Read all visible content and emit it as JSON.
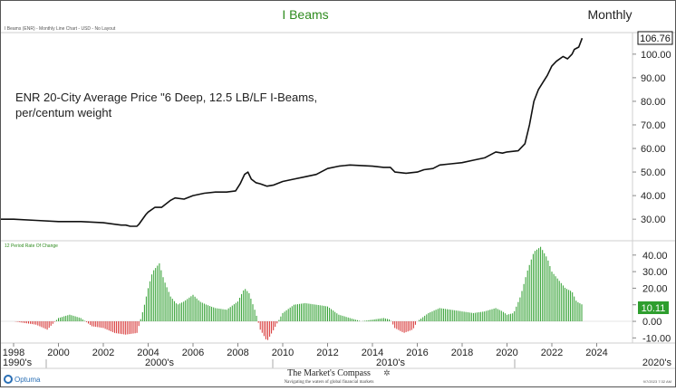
{
  "header": {
    "title": "I Beams",
    "period": "Monthly",
    "subtitle": "I Beams (ENR) - Monthly Line Chart - USD - No Layout",
    "title_color": "#2e8b1e"
  },
  "annotation": {
    "line1": "ENR 20-City Average Price \"6 Deep, 12.5 LB/LF I-Beams,",
    "line2": "per/centum weight"
  },
  "footer": {
    "vendor": "Optuma",
    "brand": "The Market's Compass",
    "tagline": "Navigating the waters of global financial markets",
    "timestamp": "9/7/2023 7:32 AM"
  },
  "chart_data": [
    {
      "type": "line",
      "title": "ENR 20-City Average Price \"6 Deep, 12.5 LB/LF I-Beams, per/centum weight",
      "ylim": [
        22,
        108
      ],
      "yticks": [
        "30.00",
        "40.00",
        "50.00",
        "60.00",
        "70.00",
        "80.00",
        "90.00",
        "100.00"
      ],
      "last_value": "106.76",
      "x": [
        1998.0,
        1999.0,
        2000.0,
        2001.0,
        2002.0,
        2002.8,
        2003.0,
        2003.2,
        2003.5,
        2003.6,
        2003.9,
        2004.0,
        2004.3,
        2004.6,
        2005.0,
        2005.2,
        2005.6,
        2006.0,
        2006.5,
        2007.0,
        2007.5,
        2007.9,
        2008.1,
        2008.3,
        2008.45,
        2008.6,
        2008.8,
        2009.0,
        2009.3,
        2009.6,
        2010.0,
        2010.5,
        2011.0,
        2011.5,
        2012.0,
        2012.5,
        2013.0,
        2014.0,
        2014.5,
        2014.8,
        2015.0,
        2015.5,
        2016.0,
        2016.3,
        2016.7,
        2017.0,
        2017.5,
        2018.0,
        2018.5,
        2019.0,
        2019.5,
        2019.8,
        2020.0,
        2020.5,
        2020.8,
        2021.0,
        2021.2,
        2021.4,
        2021.6,
        2021.8,
        2022.0,
        2022.2,
        2022.5,
        2022.7,
        2022.9,
        2023.0,
        2023.2,
        2023.35
      ],
      "y": [
        30,
        29.5,
        29,
        29,
        28.5,
        27.5,
        27.5,
        27,
        27,
        28,
        32,
        33,
        35,
        35,
        38,
        39,
        38.5,
        40,
        41,
        41.5,
        41.5,
        42,
        45,
        49,
        50,
        47,
        45.5,
        45,
        44,
        44.5,
        46,
        47,
        48,
        49,
        51.5,
        52.5,
        53,
        52.5,
        52,
        52,
        50,
        49.5,
        50,
        51,
        51.5,
        53,
        53.5,
        54,
        55,
        56,
        58.5,
        58,
        58.5,
        59,
        62,
        70,
        80,
        85,
        88,
        91,
        95,
        97,
        99,
        98,
        100,
        102,
        103,
        106.76
      ]
    },
    {
      "type": "bar",
      "title": "12 Period Rate Of Change",
      "ylim": [
        -12,
        47
      ],
      "yticks": [
        "-10.00",
        "0.00",
        "10.00",
        "20.00",
        "30.00",
        "40.00"
      ],
      "last_value": "10.11",
      "positive_color": "#2e9e2e",
      "negative_color": "#d63030",
      "x": [
        1998.0,
        1999.0,
        1999.5,
        2000.0,
        2000.5,
        2001.0,
        2001.5,
        2002.0,
        2002.5,
        2003.0,
        2003.5,
        2003.8,
        2004.0,
        2004.2,
        2004.5,
        2004.7,
        2005.0,
        2005.3,
        2005.6,
        2006.0,
        2006.3,
        2006.6,
        2007.0,
        2007.5,
        2008.0,
        2008.3,
        2008.5,
        2008.8,
        2009.0,
        2009.3,
        2009.6,
        2010.0,
        2010.5,
        2011.0,
        2011.5,
        2012.0,
        2012.5,
        2013.0,
        2013.5,
        2014.0,
        2014.5,
        2014.8,
        2015.0,
        2015.4,
        2015.8,
        2016.0,
        2016.5,
        2017.0,
        2017.5,
        2018.0,
        2018.5,
        2019.0,
        2019.5,
        2019.8,
        2020.0,
        2020.3,
        2020.6,
        2020.9,
        2021.2,
        2021.5,
        2021.8,
        2022.0,
        2022.3,
        2022.6,
        2022.9,
        2023.1,
        2023.35
      ],
      "y": [
        0,
        -2,
        -5,
        2,
        4,
        2,
        -3,
        -4,
        -7,
        -8,
        -7,
        8,
        20,
        30,
        35,
        25,
        15,
        10,
        12,
        16,
        12,
        10,
        8,
        7,
        12,
        20,
        17,
        5,
        -5,
        -12,
        -5,
        5,
        10,
        11,
        10,
        9,
        4,
        2,
        0,
        1,
        2,
        1,
        -4,
        -7,
        -5,
        0,
        5,
        8,
        7,
        6,
        5,
        6,
        8,
        6,
        4,
        5,
        15,
        30,
        42,
        45,
        38,
        30,
        25,
        20,
        18,
        12,
        10.11
      ]
    }
  ],
  "x_axis": {
    "year_labels": [
      "1998",
      "2000",
      "2002",
      "2004",
      "2006",
      "2008",
      "2010",
      "2012",
      "2014",
      "2016",
      "2018",
      "2020",
      "2022",
      "2024"
    ],
    "decades": [
      "1990's",
      "2000's",
      "2010's",
      "2020's"
    ]
  }
}
